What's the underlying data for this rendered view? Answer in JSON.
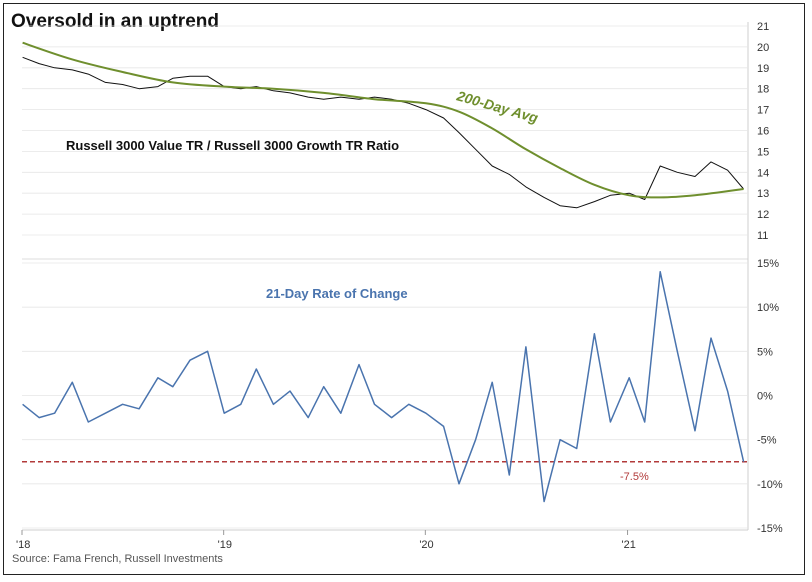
{
  "title": "Oversold in an uptrend",
  "source": "Source: Fama French, Russell Investments",
  "colors": {
    "ratio": "#111111",
    "ma200": "#6f8f2e",
    "roc": "#4a74ae",
    "threshold": "#b23a3a",
    "grid": "#e6e6e6",
    "axis": "#cfcfcf"
  },
  "chart_data": [
    {
      "type": "line",
      "label": "Russell 3000 Value TR / Russell 3000 Growth TR Ratio",
      "ylim": [
        11,
        21
      ],
      "yticks": [
        "21",
        "20",
        "19",
        "18",
        "17",
        "16",
        "15",
        "14",
        "13",
        "12",
        "11"
      ],
      "yaxis_side": "right",
      "grid": true,
      "annotation": "200-Day Avg",
      "series": [
        {
          "name": "Russell 3000 Value TR / Russell 3000 Growth TR Ratio",
          "color": "#111111",
          "x": [
            "2018-01-02",
            "2018-02-01",
            "2018-03-01",
            "2018-04-02",
            "2018-05-01",
            "2018-06-01",
            "2018-07-02",
            "2018-08-01",
            "2018-09-04",
            "2018-10-01",
            "2018-11-01",
            "2018-12-03",
            "2019-01-02",
            "2019-02-01",
            "2019-03-01",
            "2019-04-01",
            "2019-05-01",
            "2019-06-03",
            "2019-07-01",
            "2019-08-01",
            "2019-09-03",
            "2019-10-01",
            "2019-11-01",
            "2019-12-02",
            "2020-01-02",
            "2020-02-03",
            "2020-03-02",
            "2020-04-01",
            "2020-05-01",
            "2020-06-01",
            "2020-07-01",
            "2020-08-03",
            "2020-09-01",
            "2020-10-01",
            "2020-11-02",
            "2020-12-01",
            "2021-01-04",
            "2021-02-01",
            "2021-03-01",
            "2021-04-01",
            "2021-05-03",
            "2021-06-01",
            "2021-07-01",
            "2021-07-30"
          ],
          "values": [
            19.5,
            19.2,
            19.0,
            18.9,
            18.7,
            18.3,
            18.2,
            18.0,
            18.1,
            18.5,
            18.6,
            18.6,
            18.1,
            18.0,
            18.1,
            17.9,
            17.8,
            17.6,
            17.5,
            17.6,
            17.5,
            17.6,
            17.5,
            17.3,
            17.0,
            16.6,
            15.9,
            15.1,
            14.3,
            13.9,
            13.3,
            12.8,
            12.4,
            12.3,
            12.6,
            12.9,
            13.0,
            12.7,
            14.3,
            14.0,
            13.8,
            14.5,
            14.1,
            13.2
          ]
        },
        {
          "name": "200-Day Avg",
          "color": "#6f8f2e",
          "x": [
            "2018-01-02",
            "2018-04-02",
            "2018-07-02",
            "2018-10-01",
            "2019-01-02",
            "2019-04-01",
            "2019-07-01",
            "2019-10-01",
            "2020-01-02",
            "2020-03-02",
            "2020-05-01",
            "2020-07-01",
            "2020-09-01",
            "2020-11-02",
            "2021-01-04",
            "2021-03-01",
            "2021-05-03",
            "2021-07-30"
          ],
          "values": [
            20.2,
            19.4,
            18.8,
            18.3,
            18.1,
            18.0,
            17.8,
            17.5,
            17.3,
            16.9,
            16.1,
            15.1,
            14.2,
            13.4,
            12.9,
            12.8,
            12.9,
            13.2
          ]
        }
      ]
    },
    {
      "type": "line",
      "label": "21-Day Rate of Change",
      "ylim": [
        -15,
        15
      ],
      "yticks": [
        "15%",
        "10%",
        "5%",
        "0%",
        "-5%",
        "-10%",
        "-15%"
      ],
      "yaxis_side": "right",
      "grid": true,
      "threshold": {
        "value": -7.5,
        "label": "-7.5%"
      },
      "xticks": [
        "'18",
        "'19",
        "'20",
        "'21"
      ],
      "series": [
        {
          "name": "21-Day Rate of Change",
          "color": "#4a74ae",
          "x": [
            "2018-01-02",
            "2018-02-01",
            "2018-03-01",
            "2018-04-02",
            "2018-05-01",
            "2018-06-01",
            "2018-07-02",
            "2018-08-01",
            "2018-09-04",
            "2018-10-01",
            "2018-11-01",
            "2018-12-03",
            "2019-01-02",
            "2019-02-01",
            "2019-03-01",
            "2019-04-01",
            "2019-05-01",
            "2019-06-03",
            "2019-07-01",
            "2019-08-01",
            "2019-09-03",
            "2019-10-01",
            "2019-11-01",
            "2019-12-02",
            "2020-01-02",
            "2020-02-03",
            "2020-03-02",
            "2020-04-01",
            "2020-05-01",
            "2020-06-01",
            "2020-07-01",
            "2020-08-03",
            "2020-09-01",
            "2020-10-01",
            "2020-11-02",
            "2020-12-01",
            "2021-01-04",
            "2021-02-01",
            "2021-03-01",
            "2021-04-01",
            "2021-05-03",
            "2021-06-01",
            "2021-07-01",
            "2021-07-30"
          ],
          "values": [
            -1.0,
            -2.5,
            -2.0,
            1.5,
            -3.0,
            -2.0,
            -1.0,
            -1.5,
            2.0,
            1.0,
            4.0,
            5.0,
            -2.0,
            -1.0,
            3.0,
            -1.0,
            0.5,
            -2.5,
            1.0,
            -2.0,
            3.5,
            -1.0,
            -2.5,
            -1.0,
            -2.0,
            -3.5,
            -10.0,
            -5.0,
            1.5,
            -9.0,
            5.5,
            -12.0,
            -5.0,
            -6.0,
            7.0,
            -3.0,
            2.0,
            -3.0,
            14.0,
            5.0,
            -4.0,
            6.5,
            0.5,
            -7.5
          ]
        }
      ]
    }
  ]
}
